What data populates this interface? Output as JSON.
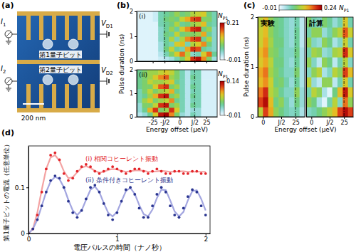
{
  "chart_data": [
    {
      "type": "diagram",
      "panel_label": "(a)",
      "qubits": [
        "第1量子ビット",
        "第2量子ビット"
      ],
      "currents": [
        {
          "text": "I",
          "subscript": "1"
        },
        {
          "text": "I",
          "subscript": "2"
        }
      ],
      "voltages": [
        {
          "text": "V",
          "subscript": "D1"
        },
        {
          "text": "V",
          "subscript": "D2"
        }
      ],
      "scale_bar": "200 nm"
    },
    {
      "type": "heatmap",
      "panel_label": "(b)",
      "x_label": "Energy offset (μeV)",
      "y_label": "Pulse duration (ns)",
      "xlim": [
        -40,
        35
      ],
      "xticks": [
        -25,
        {
          "value": -14,
          "label": "-J/2"
        },
        0,
        {
          "value": 14,
          "label": "J/2"
        },
        25
      ],
      "ylim": [
        0,
        2
      ],
      "yticks": [
        0,
        1,
        2
      ],
      "vlines": [
        -14,
        14
      ],
      "panels": [
        {
          "panel_label": "(i)",
          "x": [
            -37.5,
            -32.5,
            -27.5,
            -22.5,
            -17.5,
            -12.5,
            -7.5,
            -2.5,
            2.5,
            7.5,
            12.5,
            17.5,
            22.5,
            27.5,
            32.5
          ],
          "y": [
            0.1,
            0.3,
            0.5,
            0.7,
            0.9,
            1.1,
            1.3,
            1.5,
            1.7,
            1.9
          ],
          "cells": [
            [
              0,
              0,
              0,
              0,
              0.01,
              0.02,
              0.03,
              0.05,
              0.08,
              0.12,
              0.18,
              0.2,
              0.15,
              0.08,
              0.03
            ],
            [
              0,
              0,
              0,
              0,
              0.02,
              0.05,
              0.08,
              0.12,
              0.16,
              0.1,
              0.04,
              0.05,
              0.12,
              0.16,
              0.06
            ],
            [
              0,
              0,
              0,
              0,
              0.03,
              0.07,
              0.11,
              0.06,
              0.05,
              0.14,
              0.18,
              0.17,
              0.06,
              0.05,
              0.04
            ],
            [
              0,
              0,
              0,
              0,
              0.03,
              0.06,
              0.05,
              0.12,
              0.13,
              0.05,
              0.1,
              0.12,
              0.15,
              0.07,
              0.04
            ],
            [
              0,
              0,
              0,
              0,
              0.04,
              0.06,
              0.1,
              0.05,
              0.1,
              0.15,
              0.17,
              0.18,
              0.06,
              0.1,
              0.04
            ],
            [
              0,
              0,
              0,
              0,
              0.04,
              0.07,
              0.06,
              0.11,
              0.07,
              0.08,
              0.08,
              0.09,
              0.14,
              0.06,
              0.04
            ],
            [
              0,
              0,
              0,
              0,
              0.04,
              0.06,
              0.09,
              0.06,
              0.12,
              0.15,
              0.18,
              0.19,
              0.07,
              0.09,
              0.04
            ],
            [
              0,
              0,
              0,
              0,
              0.05,
              0.06,
              0.07,
              0.1,
              0.06,
              0.07,
              0.09,
              0.1,
              0.13,
              0.06,
              0.05
            ],
            [
              0,
              0,
              0,
              0.01,
              0.05,
              0.07,
              0.08,
              0.07,
              0.11,
              0.14,
              0.17,
              0.18,
              0.08,
              0.08,
              0.05
            ],
            [
              0,
              0,
              0,
              0.01,
              0.05,
              0.06,
              0.07,
              0.09,
              0.07,
              0.08,
              0.1,
              0.11,
              0.12,
              0.07,
              0.05
            ]
          ],
          "colorbar": {
            "label": "N",
            "label_subscript": "P1",
            "range": [
              -0.01,
              0.21
            ],
            "ticks": [
              -0.01,
              0.21
            ]
          }
        },
        {
          "panel_label": "(ii)",
          "x": [
            -37.5,
            -32.5,
            -27.5,
            -22.5,
            -17.5,
            -12.5,
            -7.5,
            -2.5,
            2.5,
            7.5,
            12.5,
            17.5,
            22.5,
            27.5,
            32.5
          ],
          "y": [
            0.1,
            0.3,
            0.5,
            0.7,
            0.9,
            1.1,
            1.3,
            1.5,
            1.7,
            1.9
          ],
          "cells": [
            [
              0.01,
              0.02,
              0.04,
              0.08,
              0.13,
              0.14,
              0.1,
              0.05,
              0.02,
              0.01,
              0.03,
              0.02,
              0,
              0,
              0
            ],
            [
              0.02,
              0.04,
              0.09,
              0.12,
              0.05,
              0.06,
              0.12,
              0.08,
              0.03,
              0.01,
              0.02,
              0.02,
              0,
              0,
              0
            ],
            [
              0.02,
              0.05,
              0.05,
              0.07,
              0.12,
              0.13,
              0.05,
              0.06,
              0.03,
              0.01,
              0.04,
              0.03,
              0,
              0,
              0
            ],
            [
              0.03,
              0.06,
              0.08,
              0.05,
              0.06,
              0.07,
              0.1,
              0.04,
              0.03,
              0.01,
              0.03,
              0.03,
              0,
              0,
              0
            ],
            [
              0.03,
              0.04,
              0.06,
              0.09,
              0.12,
              0.13,
              0.05,
              0.06,
              0.03,
              0.01,
              0.04,
              0.03,
              0,
              0,
              0
            ],
            [
              0.03,
              0.05,
              0.07,
              0.05,
              0.06,
              0.07,
              0.09,
              0.04,
              0.03,
              0.01,
              0.03,
              0.03,
              0,
              0,
              0
            ],
            [
              0.04,
              0.05,
              0.05,
              0.08,
              0.11,
              0.12,
              0.05,
              0.06,
              0.03,
              0.01,
              0.04,
              0.03,
              0,
              0,
              0
            ],
            [
              0.04,
              0.05,
              0.07,
              0.06,
              0.06,
              0.07,
              0.08,
              0.04,
              0.03,
              0.01,
              0.03,
              0.03,
              0,
              0,
              0
            ],
            [
              0.04,
              0.05,
              0.06,
              0.08,
              0.1,
              0.11,
              0.06,
              0.05,
              0.03,
              0.01,
              0.04,
              0.03,
              0,
              0,
              0
            ],
            [
              0.04,
              0.05,
              0.06,
              0.06,
              0.07,
              0.08,
              0.07,
              0.05,
              0.03,
              0.01,
              0.03,
              0.03,
              0,
              0,
              0
            ]
          ],
          "colorbar": {
            "label": "N",
            "label_subscript": "P1",
            "range": [
              -0.01,
              0.14
            ],
            "ticks": [
              -0.01,
              0.14
            ]
          }
        }
      ]
    },
    {
      "type": "heatmap",
      "panel_label": "(c)",
      "x_label": "Energy offset (μeV)",
      "y_label": "Pulse duration (ns)",
      "xlim": [
        -4,
        32
      ],
      "xticks": [
        0,
        {
          "value": 14,
          "label": "J/2"
        },
        25
      ],
      "ylim": [
        0,
        2
      ],
      "yticks": [
        0,
        1,
        2
      ],
      "vlines": [
        25
      ],
      "colorbar": {
        "label": "N",
        "label_subscript": "P1",
        "range": [
          -0.01,
          0.24
        ],
        "ticks": [
          -0.01,
          0.24
        ]
      },
      "panels": [
        {
          "title": "実験",
          "x": [
            -2,
            2,
            6,
            10,
            14,
            18,
            22,
            26,
            30
          ],
          "y": [
            0.1,
            0.3,
            0.5,
            0.7,
            0.9,
            1.1,
            1.3,
            1.5,
            1.7,
            1.9
          ],
          "cells": [
            [
              0.12,
              0.2,
              0.16,
              0.1,
              0.08,
              0.06,
              0.05,
              0.06,
              0.03
            ],
            [
              0.2,
              0.23,
              0.15,
              0.08,
              0.1,
              0.06,
              0.04,
              0.08,
              0.04
            ],
            [
              0.18,
              0.21,
              0.12,
              0.1,
              0.07,
              0.05,
              0.05,
              0.1,
              0.04
            ],
            [
              0.15,
              0.17,
              0.13,
              0.08,
              0.09,
              0.06,
              0.04,
              0.07,
              0.03
            ],
            [
              0.16,
              0.18,
              0.11,
              0.09,
              0.07,
              0.05,
              0.05,
              0.09,
              0.03
            ],
            [
              0.14,
              0.16,
              0.12,
              0.08,
              0.08,
              0.05,
              0.04,
              0.07,
              0.03
            ],
            [
              0.15,
              0.17,
              0.1,
              0.09,
              0.07,
              0.05,
              0.05,
              0.08,
              0.03
            ],
            [
              0.13,
              0.16,
              0.11,
              0.08,
              0.08,
              0.05,
              0.04,
              0.07,
              0.02
            ],
            [
              0.13,
              0.15,
              0.1,
              0.08,
              0.07,
              0.05,
              0.04,
              0.07,
              0.02
            ],
            [
              0.12,
              0.15,
              0.1,
              0.08,
              0.07,
              0.05,
              0.04,
              0.06,
              0.02
            ]
          ]
        },
        {
          "title": "計算",
          "x": [
            -2,
            2,
            6,
            10,
            14,
            18,
            22,
            26,
            30
          ],
          "y": [
            0.1,
            0.3,
            0.5,
            0.7,
            0.9,
            1.1,
            1.3,
            1.5,
            1.7,
            1.9
          ],
          "cells": [
            [
              0.05,
              0.06,
              0.08,
              0.1,
              0.12,
              0.15,
              0.2,
              0.23,
              0.2
            ],
            [
              0.1,
              0.08,
              0.03,
              0,
              0.06,
              0.12,
              0.05,
              0.18,
              0.1
            ],
            [
              0.06,
              0.12,
              0.1,
              0.03,
              0,
              0.08,
              0.15,
              0.22,
              0.14
            ],
            [
              0.12,
              0.04,
              0.02,
              0.1,
              0.1,
              0.02,
              0.06,
              0.14,
              0.06
            ],
            [
              0.05,
              0.1,
              0.12,
              0.03,
              0.05,
              0.12,
              0.1,
              0.2,
              0.15
            ],
            [
              0.1,
              0.05,
              0.02,
              0.1,
              0.08,
              0.02,
              0.06,
              0.12,
              0.05
            ],
            [
              0.06,
              0.11,
              0.1,
              0.04,
              0.05,
              0.11,
              0.12,
              0.21,
              0.14
            ],
            [
              0.1,
              0.05,
              0.04,
              0.1,
              0.08,
              0.03,
              0.05,
              0.13,
              0.06
            ],
            [
              0.06,
              0.1,
              0.1,
              0.04,
              0.06,
              0.1,
              0.12,
              0.19,
              0.13
            ],
            [
              0.09,
              0.06,
              0.05,
              0.09,
              0.07,
              0.04,
              0.06,
              0.14,
              0.06
            ]
          ]
        }
      ]
    },
    {
      "type": "scatter",
      "panel_label": "(d)",
      "x_label": "電圧パルスの時間（ナノ秒）",
      "y_label": "第1量子ビットの電流（任意単位）",
      "x": [
        0,
        0.05,
        0.1,
        0.15,
        0.2,
        0.25,
        0.3,
        0.35,
        0.4,
        0.45,
        0.5,
        0.55,
        0.6,
        0.65,
        0.7,
        0.75,
        0.8,
        0.85,
        0.9,
        0.95,
        1,
        1.05,
        1.1,
        1.15,
        1.2,
        1.25,
        1.3,
        1.35,
        1.4,
        1.45,
        1.5,
        1.55,
        1.6,
        1.65,
        1.7,
        1.75,
        1.8,
        1.85,
        1.9,
        1.95,
        2
      ],
      "xlim": [
        0,
        2.05
      ],
      "xticks": [
        0,
        1,
        2
      ],
      "ylim": [
        0,
        0.19
      ],
      "yticks": [
        0,
        0.1
      ],
      "series": [
        {
          "name": "(i) 相関コヒーレント振動",
          "color": "#e3262b",
          "type": "scatter",
          "marker": "circle",
          "values": [
            0,
            0.01,
            0.04,
            0.09,
            0.14,
            0.17,
            0.175,
            0.16,
            0.13,
            0.115,
            0.12,
            0.135,
            0.145,
            0.15,
            0.145,
            0.135,
            0.13,
            0.135,
            0.14,
            0.145,
            0.14,
            0.135,
            0.13,
            0.135,
            0.14,
            0.14,
            0.135,
            0.13,
            0.135,
            0.14,
            0.135,
            0.13,
            0.13,
            0.135,
            0.135,
            0.13,
            0.13,
            0.135,
            0.135,
            0.13,
            0.13
          ]
        },
        {
          "name": "(ii) 条件付きコヒーレント振動",
          "color": "#2a3590",
          "type": "scatter",
          "marker": "circle",
          "values": [
            0,
            0.01,
            0.03,
            0.06,
            0.09,
            0.115,
            0.125,
            0.12,
            0.1,
            0.07,
            0.045,
            0.035,
            0.05,
            0.075,
            0.1,
            0.105,
            0.09,
            0.065,
            0.04,
            0.03,
            0.045,
            0.07,
            0.095,
            0.1,
            0.085,
            0.055,
            0.035,
            0.035,
            0.06,
            0.085,
            0.1,
            0.09,
            0.06,
            0.04,
            0.035,
            0.055,
            0.08,
            0.095,
            0.09,
            0.06,
            0.04
          ]
        },
        {
          "color": "#f4a3a3",
          "type": "line",
          "line_style": "solid",
          "values": [
            0,
            0.01,
            0.045,
            0.095,
            0.14,
            0.165,
            0.17,
            0.158,
            0.135,
            0.12,
            0.122,
            0.133,
            0.143,
            0.146,
            0.142,
            0.136,
            0.132,
            0.134,
            0.138,
            0.14,
            0.139,
            0.136,
            0.134,
            0.135,
            0.137,
            0.137,
            0.136,
            0.134,
            0.134,
            0.135,
            0.136,
            0.135,
            0.134,
            0.134,
            0.135,
            0.135,
            0.134,
            0.134,
            0.134,
            0.134,
            0.134
          ]
        },
        {
          "color": "#a3a6e0",
          "type": "line",
          "line_style": "solid",
          "values": [
            0,
            0.01,
            0.03,
            0.06,
            0.09,
            0.113,
            0.123,
            0.118,
            0.1,
            0.073,
            0.05,
            0.04,
            0.05,
            0.073,
            0.095,
            0.102,
            0.09,
            0.066,
            0.045,
            0.037,
            0.047,
            0.07,
            0.092,
            0.099,
            0.086,
            0.062,
            0.042,
            0.037,
            0.052,
            0.077,
            0.095,
            0.094,
            0.072,
            0.048,
            0.037,
            0.047,
            0.072,
            0.092,
            0.094,
            0.075,
            0.05
          ]
        }
      ]
    }
  ]
}
